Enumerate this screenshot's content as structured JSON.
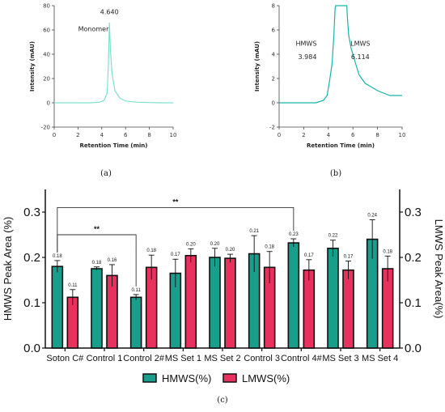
{
  "chart_data": [
    {
      "type": "line",
      "panel_label": "(a)",
      "xlabel": "Retention Time (min)",
      "ylabel": "Intensity (mAU)",
      "xlim": [
        0,
        10
      ],
      "ylim": [
        -20,
        80
      ],
      "x_ticks": [
        "0",
        "2",
        "4",
        "6",
        "8",
        "10"
      ],
      "y_ticks": [
        "-20",
        "0",
        "20",
        "40",
        "60",
        "80"
      ],
      "color": "#7fe0cf",
      "annotations": [
        {
          "text": "4.640",
          "x": 4.64,
          "y": 73
        },
        {
          "text": "Monomer",
          "x": 3.3,
          "y": 59
        }
      ],
      "series": [
        {
          "x": [
            0,
            1,
            2,
            3,
            3.8,
            4.2,
            4.45,
            4.55,
            4.64,
            4.72,
            4.85,
            5.1,
            5.5,
            6,
            7,
            8,
            9,
            10
          ],
          "y": [
            0,
            0,
            0,
            0,
            0.5,
            2,
            8,
            30,
            66,
            45,
            25,
            10,
            4,
            1.5,
            0.5,
            0.2,
            0,
            0
          ]
        }
      ]
    },
    {
      "type": "line",
      "panel_label": "(b)",
      "xlabel": "Retention Time (min)",
      "ylabel": "Intensity (mAU)",
      "xlim": [
        0,
        10
      ],
      "ylim": [
        -2,
        8
      ],
      "x_ticks": [
        "0",
        "2",
        "4",
        "6",
        "8",
        "10"
      ],
      "y_ticks": [
        "-2",
        "0",
        "2",
        "4",
        "6",
        "8"
      ],
      "color": "#19b3a6",
      "annotations": [
        {
          "text": "HMWS",
          "x": 2.2,
          "y": 4.7
        },
        {
          "text": "3.984",
          "x": 2.3,
          "y": 3.6
        },
        {
          "text": "LMWS",
          "x": 6.6,
          "y": 4.7
        },
        {
          "text": "6.114",
          "x": 6.6,
          "y": 3.6
        }
      ],
      "series": [
        {
          "x": [
            0,
            1,
            2,
            3,
            3.6,
            3.9,
            4.0,
            4.1,
            4.3,
            4.45,
            4.55,
            4.6,
            5.5,
            5.55,
            5.65,
            5.85,
            6.0,
            6.2,
            6.5,
            7,
            7.5,
            8,
            9,
            10
          ],
          "y": [
            0,
            0,
            0,
            0,
            0.2,
            0.6,
            1.2,
            1.8,
            3.2,
            5.5,
            7.8,
            8.5,
            8.5,
            7.0,
            5.6,
            4.5,
            4.0,
            3.3,
            2.3,
            1.6,
            1.3,
            1.0,
            0.6,
            0.6
          ]
        }
      ]
    },
    {
      "type": "bar",
      "panel_label": "(c)",
      "categories": [
        "Soton C#",
        "Control 1",
        "Control 2#",
        "MS Set 1",
        "MS Set 2",
        "Control 3",
        "Control 4#",
        "MS Set 3",
        "MS Set 4"
      ],
      "ylabel": "HMWS Peak Area (%)",
      "y2label": "LMWS Peak Area(%)",
      "ylim": [
        0,
        0.35
      ],
      "y_ticks": [
        "0.0",
        "0.1",
        "0.2",
        "0.3"
      ],
      "legend_position": "bottom-center",
      "series": [
        {
          "name": "HMWS(%)",
          "color": "#1a9e8c",
          "values": [
            0.18,
            0.175,
            0.112,
            0.165,
            0.2,
            0.208,
            0.232,
            0.22,
            0.24
          ],
          "errors": [
            0.013,
            0.004,
            0.006,
            0.031,
            0.02,
            0.04,
            0.009,
            0.018,
            0.043
          ],
          "labels": [
            "0.18",
            "0.18",
            "0.11",
            "0.17",
            "0.20",
            "0.21",
            "0.23",
            "0.22",
            "0.24"
          ]
        },
        {
          "name": "LMWS(%)",
          "color": "#e8325d",
          "values": [
            0.112,
            0.16,
            0.178,
            0.204,
            0.198,
            0.178,
            0.172,
            0.172,
            0.175
          ],
          "errors": [
            0.017,
            0.024,
            0.027,
            0.015,
            0.009,
            0.035,
            0.023,
            0.02,
            0.028
          ],
          "labels": [
            "0.11",
            "0.16",
            "0.18",
            "0.20",
            "0.20",
            "0.18",
            "0.17",
            "0.17",
            "0.18"
          ]
        }
      ],
      "significance": [
        {
          "from": 0,
          "to": 6,
          "label": "**",
          "y": 0.31
        },
        {
          "from": 0,
          "to": 2,
          "label": "**",
          "y": 0.25
        }
      ]
    }
  ]
}
